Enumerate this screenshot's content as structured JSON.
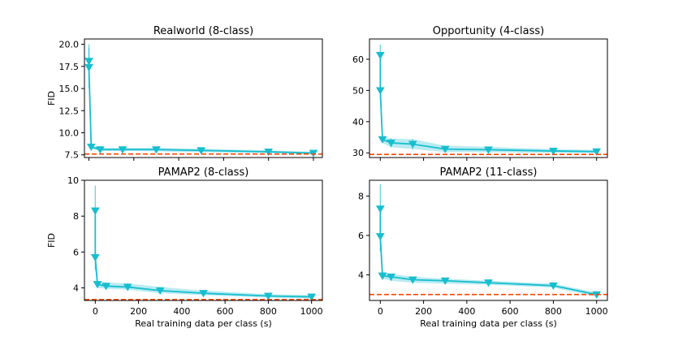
{
  "colors": {
    "line": "#17becf",
    "band": "#17becf",
    "baseline": "#ff4500"
  },
  "chart_data": [
    {
      "type": "line",
      "title": "Realworld (8-class)",
      "xlabel": "",
      "ylabel": "FID",
      "xlim": [
        -20,
        1040
      ],
      "ylim": [
        7.2,
        20.6
      ],
      "xticks": [
        0,
        200,
        400,
        600,
        800,
        1000
      ],
      "xtick_labels": [],
      "yticks": [
        7.5,
        10.0,
        12.5,
        15.0,
        17.5,
        20.0
      ],
      "ytick_labels": [
        "7.5",
        "10.0",
        "12.5",
        "15.0",
        "17.5",
        "20.0"
      ],
      "baseline": 7.6,
      "series": [
        {
          "name": "FID",
          "x": [
            0,
            0,
            10,
            50,
            150,
            300,
            500,
            800,
            1000
          ],
          "values": [
            18.1,
            17.4,
            8.4,
            8.1,
            8.1,
            8.1,
            8.0,
            7.85,
            7.7
          ],
          "lower": [
            16.0,
            15.0,
            8.2,
            7.95,
            7.95,
            7.9,
            7.8,
            7.7,
            7.55
          ],
          "upper": [
            20.0,
            19.6,
            8.6,
            8.3,
            8.3,
            8.3,
            8.2,
            8.0,
            7.85
          ]
        }
      ]
    },
    {
      "type": "line",
      "title": "Opportunity (4-class)",
      "xlabel": "",
      "ylabel": "",
      "xlim": [
        -50,
        1050
      ],
      "ylim": [
        28.5,
        66.5
      ],
      "xticks": [
        0,
        200,
        400,
        600,
        800,
        1000
      ],
      "xtick_labels": [],
      "yticks": [
        30,
        40,
        50,
        60
      ],
      "ytick_labels": [
        "30",
        "40",
        "50",
        "60"
      ],
      "baseline": 29.5,
      "series": [
        {
          "name": "FID",
          "x": [
            0,
            0,
            10,
            50,
            150,
            300,
            500,
            800,
            1000
          ],
          "values": [
            61.3,
            50.0,
            34.3,
            33.2,
            32.8,
            31.2,
            31.0,
            30.6,
            30.4
          ],
          "lower": [
            58.0,
            47.0,
            33.2,
            31.8,
            31.2,
            30.3,
            30.2,
            30.0,
            29.9
          ],
          "upper": [
            64.7,
            53.0,
            35.4,
            34.6,
            34.4,
            32.3,
            31.9,
            31.2,
            30.9
          ]
        }
      ]
    },
    {
      "type": "line",
      "title": "PAMAP2 (8-class)",
      "xlabel": "Real training data per class (s)",
      "ylabel": "FID",
      "xlim": [
        -50,
        1050
      ],
      "ylim": [
        3.3,
        10.0
      ],
      "xticks": [
        0,
        200,
        400,
        600,
        800,
        1000
      ],
      "xtick_labels": [
        "0",
        "200",
        "400",
        "600",
        "800",
        "1000"
      ],
      "yticks": [
        4,
        6,
        8,
        10
      ],
      "ytick_labels": [
        "4",
        "6",
        "8",
        "10"
      ],
      "baseline": 3.35,
      "series": [
        {
          "name": "FID",
          "x": [
            0,
            0,
            10,
            50,
            150,
            300,
            500,
            800,
            1000
          ],
          "values": [
            8.3,
            5.7,
            4.2,
            4.1,
            4.05,
            3.85,
            3.7,
            3.55,
            3.5
          ],
          "lower": [
            7.0,
            5.0,
            4.0,
            3.95,
            3.9,
            3.7,
            3.6,
            3.45,
            3.4
          ],
          "upper": [
            9.7,
            6.4,
            4.4,
            4.3,
            4.25,
            4.05,
            3.85,
            3.65,
            3.6
          ]
        }
      ]
    },
    {
      "type": "line",
      "title": "PAMAP2 (11-class)",
      "xlabel": "Real training data per class (s)",
      "ylabel": "",
      "xlim": [
        -50,
        1050
      ],
      "ylim": [
        2.7,
        8.8
      ],
      "xticks": [
        0,
        200,
        400,
        600,
        800,
        1000
      ],
      "xtick_labels": [
        "0",
        "200",
        "400",
        "600",
        "800",
        "1000"
      ],
      "yticks": [
        4,
        6,
        8
      ],
      "ytick_labels": [
        "4",
        "6",
        "8"
      ],
      "baseline": 3.0,
      "series": [
        {
          "name": "FID",
          "x": [
            0,
            0,
            10,
            50,
            150,
            300,
            500,
            800,
            1000
          ],
          "values": [
            7.35,
            5.95,
            3.95,
            3.9,
            3.75,
            3.7,
            3.6,
            3.45,
            3.0
          ],
          "lower": [
            6.3,
            5.2,
            3.8,
            3.7,
            3.6,
            3.55,
            3.5,
            3.35,
            2.9
          ],
          "upper": [
            8.6,
            6.7,
            4.15,
            4.05,
            3.9,
            3.8,
            3.7,
            3.55,
            3.1
          ]
        }
      ]
    }
  ]
}
